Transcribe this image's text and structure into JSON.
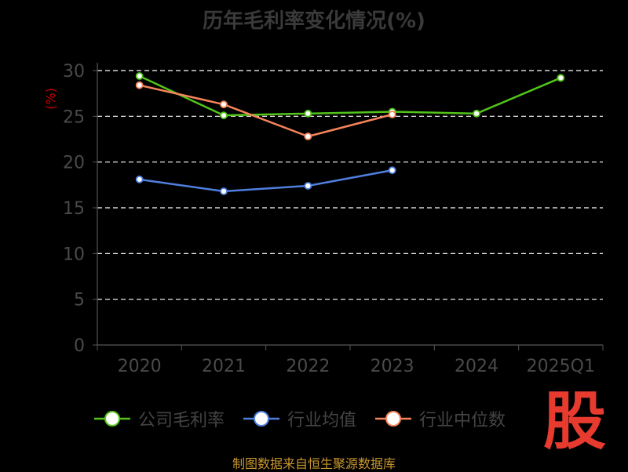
{
  "title": "历年毛利率变化情况(%)",
  "source_note": "制图数据来自恒生聚源数据库",
  "watermark_text": "股",
  "chart_data": {
    "type": "line",
    "title": "历年毛利率变化情况(%)",
    "ylabel": "(%)",
    "xlabel": "",
    "categories": [
      "2020",
      "2021",
      "2022",
      "2023",
      "2024",
      "2025Q1"
    ],
    "ylim": [
      0,
      30
    ],
    "yticks": [
      0,
      5,
      10,
      15,
      20,
      25,
      30
    ],
    "grid": true,
    "legend_position": "bottom",
    "series": [
      {
        "name": "公司毛利率",
        "color": "#52c41a",
        "values": [
          29.4,
          25.1,
          25.3,
          25.5,
          25.3,
          29.2
        ]
      },
      {
        "name": "行业均值",
        "color": "#4f7fde",
        "values": [
          18.1,
          16.8,
          17.4,
          19.1,
          null,
          null
        ]
      },
      {
        "name": "行业中位数",
        "color": "#f5845a",
        "values": [
          28.4,
          26.3,
          22.8,
          25.2,
          null,
          null
        ]
      }
    ]
  }
}
